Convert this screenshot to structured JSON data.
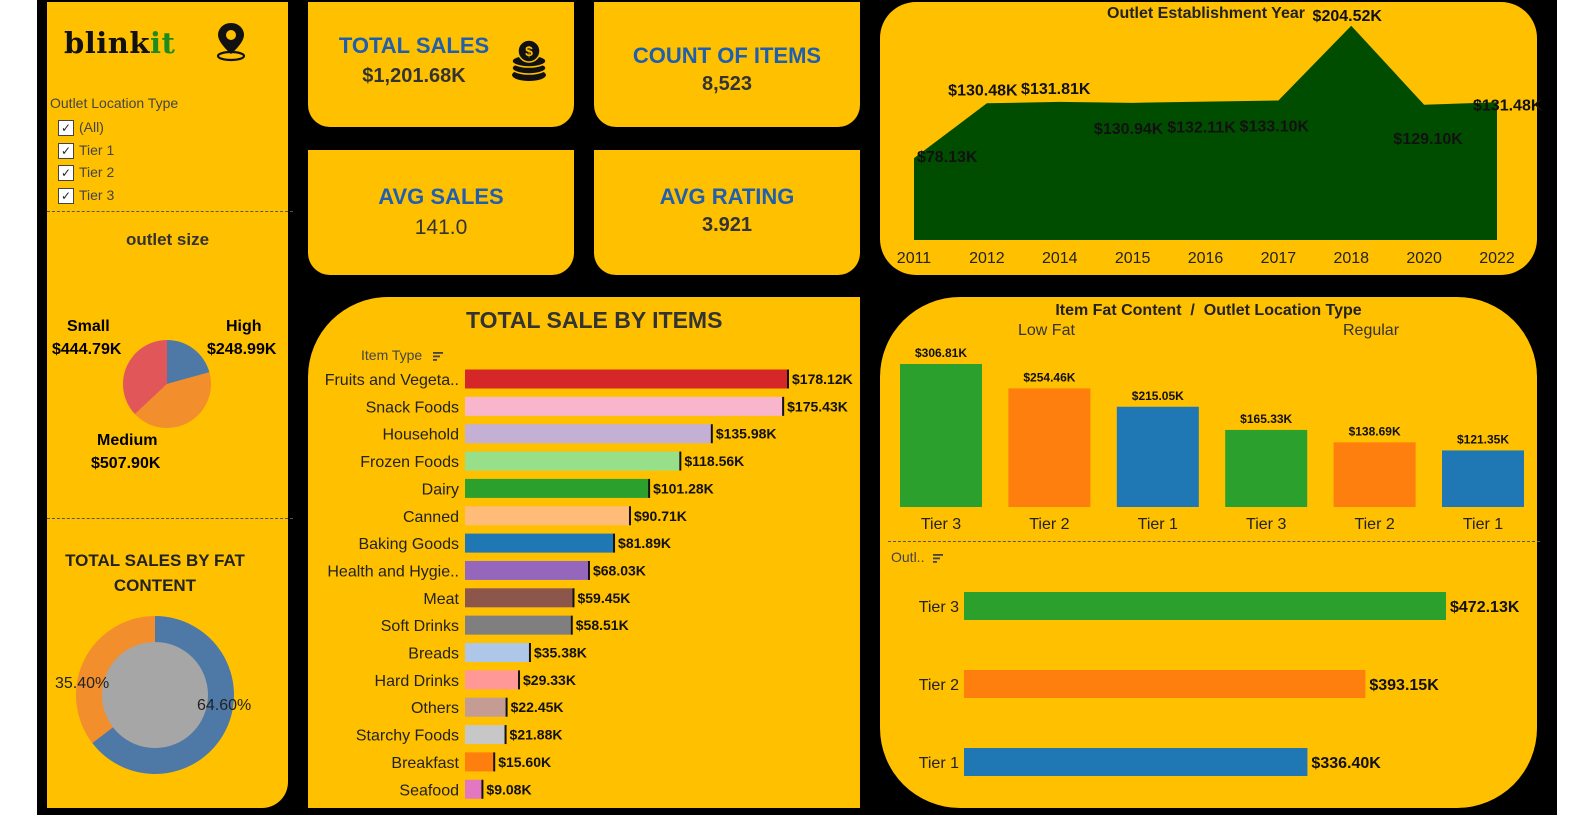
{
  "brand": {
    "logo_text_dark": "blink",
    "logo_text_accent": "it",
    "pin_icon": "location-pin-icon"
  },
  "filters": {
    "outlet_location_type": {
      "title": "Outlet Location Type",
      "options": [
        {
          "label": "(All)",
          "checked": true
        },
        {
          "label": "Tier 1",
          "checked": true
        },
        {
          "label": "Tier 2",
          "checked": true
        },
        {
          "label": "Tier 3",
          "checked": true
        }
      ]
    }
  },
  "kpis": {
    "total_sales": {
      "title": "TOTAL SALES",
      "value": "$1,201.68K",
      "icon": "coins-icon"
    },
    "count_items": {
      "title": "COUNT OF ITEMS",
      "value": "8,523"
    },
    "avg_sales": {
      "title": "AVG SALES",
      "value": "141.0"
    },
    "avg_rating": {
      "title": "AVG RATING",
      "value": "3.921"
    }
  },
  "colors": {
    "panel": "#FFC000",
    "background": "#000000",
    "kpi_title": "#1F5FAD",
    "area_fill": "#004D00"
  },
  "chart_data": [
    {
      "id": "outlet_size",
      "type": "pie",
      "title": "outlet size",
      "categories": [
        "Small",
        "High",
        "Medium"
      ],
      "values": [
        444.79,
        248.99,
        507.9
      ],
      "value_labels": [
        "$444.79K",
        "$248.99K",
        "$507.90K"
      ],
      "colors": [
        "#E15759",
        "#4E79A7",
        "#F28E2B"
      ]
    },
    {
      "id": "fat_content",
      "type": "pie",
      "title": "TOTAL SALES BY FAT CONTENT",
      "categories": [
        "Low Fat",
        "Regular"
      ],
      "values": [
        64.6,
        35.4
      ],
      "value_labels": [
        "64.60%",
        "35.40%"
      ],
      "colors": [
        "#4E79A7",
        "#F28E2B"
      ],
      "donut": true
    },
    {
      "id": "sale_by_items",
      "type": "bar",
      "title": "TOTAL SALE BY ITEMS",
      "axis_label": "Item Type",
      "orientation": "horizontal",
      "categories": [
        "Fruits and Vegeta..",
        "Snack Foods",
        "Household",
        "Frozen Foods",
        "Dairy",
        "Canned",
        "Baking Goods",
        "Health and Hygie..",
        "Meat",
        "Soft Drinks",
        "Breads",
        "Hard Drinks",
        "Others",
        "Starchy Foods",
        "Breakfast",
        "Seafood"
      ],
      "values": [
        178.12,
        175.43,
        135.98,
        118.56,
        101.28,
        90.71,
        81.89,
        68.03,
        59.45,
        58.51,
        35.38,
        29.33,
        22.45,
        21.88,
        15.6,
        9.08
      ],
      "value_labels": [
        "$178.12K",
        "$175.43K",
        "$135.98K",
        "$118.56K",
        "$101.28K",
        "$90.71K",
        "$81.89K",
        "$68.03K",
        "$59.45K",
        "$58.51K",
        "$35.38K",
        "$29.33K",
        "$22.45K",
        "$21.88K",
        "$15.60K",
        "$9.08K"
      ],
      "colors": [
        "#D62728",
        "#F8B6CC",
        "#C5B0D5",
        "#98DF8A",
        "#2CA02C",
        "#FFBB78",
        "#1F77B4",
        "#9467BD",
        "#8C564B",
        "#7F7F7F",
        "#AEC7E8",
        "#FF9896",
        "#C49C94",
        "#C7C7C7",
        "#FF7F0E",
        "#E377C2"
      ]
    },
    {
      "id": "establishment_year",
      "type": "area",
      "title": "Outlet Establishment Year",
      "x": [
        "2011",
        "2012",
        "2014",
        "2015",
        "2016",
        "2017",
        "2018",
        "2020",
        "2022"
      ],
      "values": [
        78.13,
        130.48,
        131.81,
        130.94,
        132.11,
        133.1,
        204.52,
        129.1,
        131.48
      ],
      "value_labels": [
        "$78.13K",
        "$130.48K",
        "$131.81K",
        "$130.94K",
        "$132.11K",
        "$133.10K",
        "$204.52K",
        "$129.10K",
        "$131.48K"
      ],
      "color": "#004D00"
    },
    {
      "id": "fat_by_location",
      "type": "bar",
      "title": "Item Fat Content  /  Outlet Location Type",
      "groups": [
        "Low Fat",
        "Regular"
      ],
      "categories": [
        "Tier 3",
        "Tier 2",
        "Tier 1",
        "Tier 3",
        "Tier 2",
        "Tier 1"
      ],
      "values": [
        306.81,
        254.46,
        215.05,
        165.33,
        138.69,
        121.35
      ],
      "value_labels": [
        "$306.81K",
        "$254.46K",
        "$215.05K",
        "$165.33K",
        "$138.69K",
        "$121.35K"
      ],
      "colors": [
        "#2CA02C",
        "#FF7F0E",
        "#1F77B4",
        "#2CA02C",
        "#FF7F0E",
        "#1F77B4"
      ]
    },
    {
      "id": "outlet_location",
      "type": "bar",
      "orientation": "horizontal",
      "axis_label": "Outl..",
      "categories": [
        "Tier 3",
        "Tier 2",
        "Tier 1"
      ],
      "values": [
        472.13,
        393.15,
        336.4
      ],
      "value_labels": [
        "$472.13K",
        "$393.15K",
        "$336.40K"
      ],
      "colors": [
        "#2CA02C",
        "#FF7F0E",
        "#1F77B4"
      ]
    }
  ]
}
